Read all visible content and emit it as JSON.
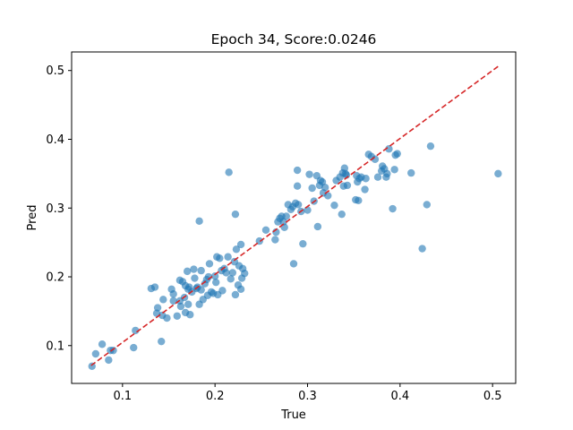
{
  "chart_data": {
    "type": "scatter",
    "title": "Epoch 34, Score:0.0246",
    "xlabel": "True",
    "ylabel": "Pred",
    "xlim": [
      0.045,
      0.525
    ],
    "ylim": [
      0.045,
      0.527
    ],
    "xticks": [
      0.1,
      0.2,
      0.3,
      0.4,
      0.5
    ],
    "yticks": [
      0.1,
      0.2,
      0.3,
      0.4,
      0.5
    ],
    "grid": false,
    "point_color": "#1f77b4",
    "reference_line": {
      "style": "dashed",
      "color": "#d62728",
      "x": [
        0.066,
        0.506
      ],
      "y": [
        0.071,
        0.506
      ]
    },
    "points": [
      [
        0.067,
        0.07
      ],
      [
        0.071,
        0.088
      ],
      [
        0.078,
        0.102
      ],
      [
        0.085,
        0.079
      ],
      [
        0.087,
        0.093
      ],
      [
        0.09,
        0.093
      ],
      [
        0.112,
        0.097
      ],
      [
        0.114,
        0.122
      ],
      [
        0.131,
        0.183
      ],
      [
        0.135,
        0.185
      ],
      [
        0.137,
        0.147
      ],
      [
        0.138,
        0.155
      ],
      [
        0.142,
        0.106
      ],
      [
        0.143,
        0.144
      ],
      [
        0.144,
        0.167
      ],
      [
        0.148,
        0.14
      ],
      [
        0.153,
        0.182
      ],
      [
        0.155,
        0.165
      ],
      [
        0.155,
        0.175
      ],
      [
        0.159,
        0.143
      ],
      [
        0.162,
        0.195
      ],
      [
        0.162,
        0.165
      ],
      [
        0.163,
        0.157
      ],
      [
        0.165,
        0.193
      ],
      [
        0.167,
        0.17
      ],
      [
        0.168,
        0.148
      ],
      [
        0.168,
        0.187
      ],
      [
        0.17,
        0.208
      ],
      [
        0.171,
        0.182
      ],
      [
        0.171,
        0.16
      ],
      [
        0.172,
        0.185
      ],
      [
        0.173,
        0.145
      ],
      [
        0.175,
        0.178
      ],
      [
        0.177,
        0.211
      ],
      [
        0.178,
        0.198
      ],
      [
        0.18,
        0.183
      ],
      [
        0.181,
        0.185
      ],
      [
        0.183,
        0.16
      ],
      [
        0.183,
        0.281
      ],
      [
        0.185,
        0.181
      ],
      [
        0.185,
        0.209
      ],
      [
        0.187,
        0.167
      ],
      [
        0.189,
        0.19
      ],
      [
        0.191,
        0.196
      ],
      [
        0.192,
        0.173
      ],
      [
        0.193,
        0.2
      ],
      [
        0.194,
        0.219
      ],
      [
        0.196,
        0.178
      ],
      [
        0.198,
        0.176
      ],
      [
        0.2,
        0.201
      ],
      [
        0.201,
        0.192
      ],
      [
        0.202,
        0.229
      ],
      [
        0.203,
        0.174
      ],
      [
        0.205,
        0.227
      ],
      [
        0.207,
        0.209
      ],
      [
        0.208,
        0.18
      ],
      [
        0.21,
        0.212
      ],
      [
        0.212,
        0.206
      ],
      [
        0.214,
        0.229
      ],
      [
        0.215,
        0.352
      ],
      [
        0.217,
        0.197
      ],
      [
        0.219,
        0.206
      ],
      [
        0.221,
        0.222
      ],
      [
        0.222,
        0.174
      ],
      [
        0.222,
        0.291
      ],
      [
        0.223,
        0.24
      ],
      [
        0.225,
        0.188
      ],
      [
        0.226,
        0.216
      ],
      [
        0.228,
        0.247
      ],
      [
        0.228,
        0.182
      ],
      [
        0.229,
        0.198
      ],
      [
        0.23,
        0.212
      ],
      [
        0.232,
        0.205
      ],
      [
        0.248,
        0.252
      ],
      [
        0.255,
        0.268
      ],
      [
        0.265,
        0.254
      ],
      [
        0.266,
        0.265
      ],
      [
        0.268,
        0.28
      ],
      [
        0.27,
        0.285
      ],
      [
        0.272,
        0.288
      ],
      [
        0.274,
        0.28
      ],
      [
        0.275,
        0.272
      ],
      [
        0.277,
        0.288
      ],
      [
        0.279,
        0.305
      ],
      [
        0.282,
        0.298
      ],
      [
        0.284,
        0.302
      ],
      [
        0.285,
        0.219
      ],
      [
        0.287,
        0.307
      ],
      [
        0.289,
        0.332
      ],
      [
        0.289,
        0.355
      ],
      [
        0.29,
        0.305
      ],
      [
        0.293,
        0.295
      ],
      [
        0.295,
        0.248
      ],
      [
        0.3,
        0.297
      ],
      [
        0.302,
        0.349
      ],
      [
        0.305,
        0.329
      ],
      [
        0.307,
        0.31
      ],
      [
        0.31,
        0.347
      ],
      [
        0.311,
        0.273
      ],
      [
        0.313,
        0.333
      ],
      [
        0.314,
        0.34
      ],
      [
        0.316,
        0.338
      ],
      [
        0.317,
        0.322
      ],
      [
        0.319,
        0.33
      ],
      [
        0.322,
        0.318
      ],
      [
        0.329,
        0.304
      ],
      [
        0.331,
        0.34
      ],
      [
        0.335,
        0.345
      ],
      [
        0.337,
        0.291
      ],
      [
        0.338,
        0.351
      ],
      [
        0.339,
        0.332
      ],
      [
        0.34,
        0.358
      ],
      [
        0.341,
        0.35
      ],
      [
        0.342,
        0.348
      ],
      [
        0.343,
        0.333
      ],
      [
        0.352,
        0.312
      ],
      [
        0.353,
        0.347
      ],
      [
        0.354,
        0.338
      ],
      [
        0.355,
        0.311
      ],
      [
        0.356,
        0.343
      ],
      [
        0.358,
        0.345
      ],
      [
        0.362,
        0.327
      ],
      [
        0.363,
        0.343
      ],
      [
        0.366,
        0.378
      ],
      [
        0.369,
        0.375
      ],
      [
        0.373,
        0.371
      ],
      [
        0.376,
        0.345
      ],
      [
        0.38,
        0.354
      ],
      [
        0.381,
        0.361
      ],
      [
        0.383,
        0.357
      ],
      [
        0.385,
        0.345
      ],
      [
        0.386,
        0.35
      ],
      [
        0.388,
        0.386
      ],
      [
        0.392,
        0.299
      ],
      [
        0.394,
        0.356
      ],
      [
        0.395,
        0.377
      ],
      [
        0.397,
        0.379
      ],
      [
        0.412,
        0.351
      ],
      [
        0.424,
        0.241
      ],
      [
        0.429,
        0.305
      ],
      [
        0.433,
        0.39
      ],
      [
        0.506,
        0.35
      ]
    ]
  }
}
